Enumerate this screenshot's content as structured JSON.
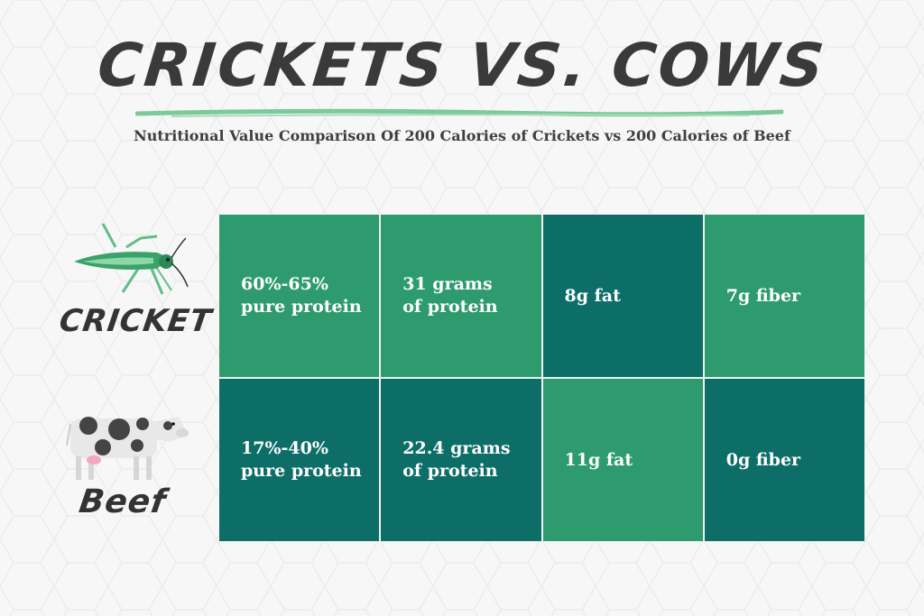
{
  "title": "CRICKETS VS. COWS",
  "subtitle": "Nutritional Value Comparison Of 200 Calories of Crickets vs 200 Calories of Beef",
  "colors": {
    "light_green": "#2e9b6e",
    "dark_teal": "#0d6e68",
    "accent_brush": "#7cc99a"
  },
  "rows": [
    {
      "label": "CRICKET",
      "icon": "cricket-icon",
      "cells": [
        "60%-65%\npure protein",
        "31 grams\nof protein",
        "8g fat",
        "7g fiber"
      ]
    },
    {
      "label": "Beef",
      "icon": "cow-icon",
      "cells": [
        "17%-40%\npure protein",
        "22.4 grams\nof protein",
        "11g fat",
        "0g fiber"
      ]
    }
  ]
}
